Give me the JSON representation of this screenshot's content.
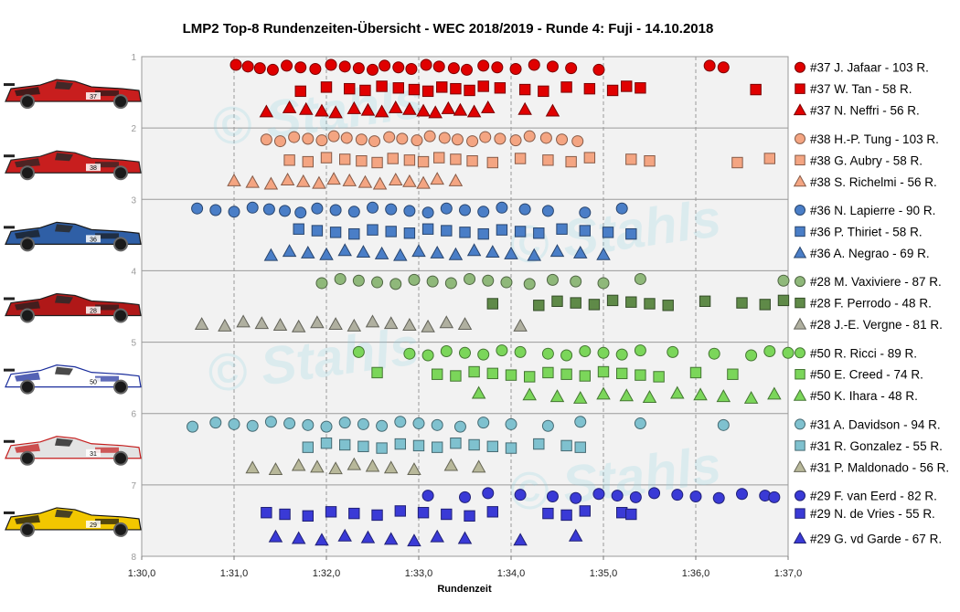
{
  "chart_data": {
    "type": "scatter",
    "title": "LMP2  Top-8  Rundenzeiten-Übersicht   - WEC 2018/2019   - Runde  4:  Fuji   - 14.10.2018",
    "xlabel": "Rundenzeit",
    "ylabel": "",
    "x_unit": "seconds (m:ss)",
    "xlim": [
      90,
      97
    ],
    "ylim": [
      1,
      8
    ],
    "y_reversed": true,
    "x_ticks": [
      "1:30,0",
      "1:31,0",
      "1:32,0",
      "1:33,0",
      "1:34,0",
      "1:35,0",
      "1:36,0",
      "1:37,0"
    ],
    "y_ticks": [
      "1",
      "2",
      "3",
      "4",
      "5",
      "6",
      "7",
      "8"
    ],
    "grid": {
      "x_dashed": true,
      "y_solid": true
    },
    "legend_position": "right",
    "cars": [
      {
        "number": "37",
        "livery": "#c81e1e",
        "accent": "#1a1a1a"
      },
      {
        "number": "38",
        "livery": "#c81e1e",
        "accent": "#262626"
      },
      {
        "number": "36",
        "livery": "#2f5fa6",
        "accent": "#1a1a1a"
      },
      {
        "number": "28",
        "livery": "#b01818",
        "accent": "#202020"
      },
      {
        "number": "50",
        "livery": "#ffffff",
        "accent": "#1b2e9c"
      },
      {
        "number": "31",
        "livery": "#e3e3e3",
        "accent": "#c41c1c"
      },
      {
        "number": "29",
        "livery": "#f2c700",
        "accent": "#111111"
      }
    ],
    "series": [
      {
        "name": "#37 J. Jafaar - 103 R.",
        "car": "#37",
        "marker": "circle",
        "color": "#e00000",
        "row": 1.15,
        "x": [
          91.02,
          91.15,
          91.28,
          91.42,
          91.57,
          91.72,
          91.88,
          92.05,
          92.2,
          92.35,
          92.5,
          92.63,
          92.78,
          92.92,
          93.08,
          93.22,
          93.38,
          93.52,
          93.7,
          93.85,
          94.05,
          94.25,
          94.45,
          94.65,
          94.95,
          96.15,
          96.3
        ]
      },
      {
        "name": "#37 W. Tan - 58 R.",
        "car": "#37",
        "marker": "square",
        "color": "#e00000",
        "row": 1.45,
        "x": [
          91.72,
          92.0,
          92.25,
          92.42,
          92.6,
          92.78,
          92.95,
          93.1,
          93.25,
          93.4,
          93.55,
          93.7,
          93.88,
          94.15,
          94.35,
          94.6,
          94.85,
          95.1,
          95.25,
          95.4,
          96.65
        ]
      },
      {
        "name": "#37 N. Neffri - 56 R.",
        "car": "#37",
        "marker": "triangle",
        "color": "#e00000",
        "row": 1.75,
        "x": [
          91.35,
          91.6,
          91.78,
          91.95,
          92.1,
          92.3,
          92.45,
          92.6,
          92.75,
          92.9,
          93.05,
          93.18,
          93.32,
          93.45,
          93.6,
          93.75,
          94.15,
          94.45
        ]
      },
      {
        "name": "#38 H.-P. Tung - 103 R.",
        "car": "#38",
        "marker": "circle",
        "color": "#f4a582",
        "row": 2.15,
        "x": [
          91.35,
          91.5,
          91.65,
          91.8,
          91.95,
          92.08,
          92.22,
          92.38,
          92.52,
          92.68,
          92.82,
          92.98,
          93.12,
          93.28,
          93.42,
          93.58,
          93.72,
          93.88,
          94.05,
          94.2,
          94.38,
          94.55,
          94.72
        ]
      },
      {
        "name": "#38 G. Aubry - 58 R.",
        "car": "#38",
        "marker": "square",
        "color": "#f4a582",
        "row": 2.45,
        "x": [
          91.6,
          91.8,
          92.0,
          92.2,
          92.38,
          92.55,
          92.72,
          92.9,
          93.05,
          93.22,
          93.4,
          93.58,
          93.8,
          94.1,
          94.4,
          94.65,
          94.85,
          95.3,
          95.5,
          96.45,
          96.8
        ]
      },
      {
        "name": "#38 S. Richelmi - 56 R.",
        "car": "#38",
        "marker": "triangle",
        "color": "#f4a582",
        "row": 2.75,
        "x": [
          91.0,
          91.2,
          91.4,
          91.58,
          91.75,
          91.92,
          92.08,
          92.25,
          92.42,
          92.58,
          92.75,
          92.9,
          93.05,
          93.2,
          93.4
        ]
      },
      {
        "name": "#36 N. Lapierre - 90 R.",
        "car": "#36",
        "marker": "circle",
        "color": "#4a7ec7",
        "row": 3.15,
        "x": [
          90.6,
          90.8,
          91.0,
          91.2,
          91.38,
          91.55,
          91.72,
          91.9,
          92.1,
          92.3,
          92.5,
          92.7,
          92.9,
          93.1,
          93.3,
          93.5,
          93.7,
          93.9,
          94.15,
          94.4,
          94.8,
          95.2
        ]
      },
      {
        "name": "#36 P. Thiriet - 58 R.",
        "car": "#36",
        "marker": "square",
        "color": "#4a7ec7",
        "row": 3.45,
        "x": [
          91.7,
          91.9,
          92.1,
          92.3,
          92.5,
          92.7,
          92.9,
          93.1,
          93.3,
          93.5,
          93.7,
          93.9,
          94.1,
          94.3,
          94.55,
          94.8,
          95.05,
          95.3
        ]
      },
      {
        "name": "#36 A. Negrao - 69 R.",
        "car": "#36",
        "marker": "triangle",
        "color": "#4a7ec7",
        "row": 3.75,
        "x": [
          91.4,
          91.6,
          91.8,
          92.0,
          92.2,
          92.4,
          92.6,
          92.8,
          93.0,
          93.2,
          93.4,
          93.6,
          93.8,
          94.0,
          94.25,
          94.5,
          94.75,
          95.0
        ]
      },
      {
        "name": "#28 M. Vaxiviere - 87 R.",
        "car": "#28",
        "marker": "circle",
        "color": "#8fb87a",
        "row": 4.15,
        "x": [
          91.95,
          92.15,
          92.35,
          92.55,
          92.75,
          92.95,
          93.15,
          93.35,
          93.55,
          93.75,
          93.95,
          94.2,
          94.45,
          94.7,
          95.0,
          95.4,
          96.95
        ]
      },
      {
        "name": "#28 F. Perrodo - 48 R.",
        "car": "#28",
        "marker": "square",
        "color": "#5f8a48",
        "row": 4.45,
        "x": [
          93.8,
          94.3,
          94.5,
          94.7,
          94.9,
          95.1,
          95.3,
          95.5,
          95.7,
          96.1,
          96.5,
          96.75,
          96.95
        ]
      },
      {
        "name": "#28 J.-E. Vergne - 81 R.",
        "car": "#28",
        "marker": "triangle",
        "color": "#b0b0a0",
        "row": 4.75,
        "x": [
          90.65,
          90.9,
          91.1,
          91.3,
          91.5,
          91.7,
          91.9,
          92.1,
          92.3,
          92.5,
          92.7,
          92.9,
          93.1,
          93.3,
          93.5,
          94.1
        ]
      },
      {
        "name": "#50 R. Ricci - 89 R.",
        "car": "#50",
        "marker": "circle",
        "color": "#7bd65a",
        "row": 5.15,
        "x": [
          92.35,
          92.9,
          93.1,
          93.3,
          93.5,
          93.7,
          93.9,
          94.1,
          94.4,
          94.6,
          94.8,
          95.0,
          95.2,
          95.4,
          95.75,
          96.2,
          96.6,
          96.8,
          97.0
        ]
      },
      {
        "name": "#50 E. Creed - 74 R.",
        "car": "#50",
        "marker": "square",
        "color": "#7bd65a",
        "row": 5.45,
        "x": [
          92.55,
          93.2,
          93.4,
          93.6,
          93.8,
          94.0,
          94.2,
          94.4,
          94.6,
          94.8,
          95.0,
          95.2,
          95.4,
          95.6,
          96.0,
          96.4
        ]
      },
      {
        "name": "#50 K. Ihara - 48 R.",
        "car": "#50",
        "marker": "triangle",
        "color": "#7bd65a",
        "row": 5.75,
        "x": [
          93.65,
          94.2,
          94.5,
          94.75,
          95.0,
          95.25,
          95.5,
          95.8,
          96.05,
          96.3,
          96.6,
          96.85
        ]
      },
      {
        "name": "#31 A. Davidson - 94 R.",
        "car": "#31",
        "marker": "circle",
        "color": "#7fc1cf",
        "row": 6.15,
        "x": [
          90.55,
          90.8,
          91.0,
          91.2,
          91.4,
          91.6,
          91.8,
          92.0,
          92.2,
          92.4,
          92.6,
          92.8,
          93.0,
          93.2,
          93.45,
          93.7,
          94.0,
          94.4,
          94.75,
          95.4,
          96.3
        ]
      },
      {
        "name": "#31 R. Gonzalez - 55 R.",
        "car": "#31",
        "marker": "square",
        "color": "#7fc1cf",
        "row": 6.45,
        "x": [
          91.8,
          92.0,
          92.2,
          92.4,
          92.6,
          92.8,
          93.0,
          93.2,
          93.4,
          93.6,
          93.8,
          94.0,
          94.3,
          94.6,
          94.75
        ]
      },
      {
        "name": "#31 P. Maldonado - 56 R.",
        "car": "#31",
        "marker": "triangle",
        "color": "#b8b89a",
        "row": 6.75,
        "x": [
          91.2,
          91.45,
          91.7,
          91.9,
          92.1,
          92.3,
          92.5,
          92.7,
          92.95,
          93.35,
          93.65
        ]
      },
      {
        "name": "#29 F. van Eerd - 82 R.",
        "car": "#29",
        "marker": "circle",
        "color": "#3a3ad6",
        "row": 7.15,
        "x": [
          93.1,
          93.5,
          93.75,
          94.1,
          94.45,
          94.7,
          94.95,
          95.15,
          95.35,
          95.55,
          95.8,
          96.0,
          96.25,
          96.5,
          96.75,
          96.85
        ]
      },
      {
        "name": "#29 N. de Vries - 55 R.",
        "car": "#29",
        "marker": "square",
        "color": "#3a3ad6",
        "row": 7.4,
        "x": [
          91.35,
          91.55,
          91.8,
          92.05,
          92.3,
          92.55,
          92.8,
          93.05,
          93.3,
          93.55,
          93.8,
          94.4,
          94.6,
          94.8,
          95.2,
          95.3
        ]
      },
      {
        "name": "#29 G. vd Garde - 67 R.",
        "car": "#29",
        "marker": "triangle",
        "color": "#3a3ad6",
        "row": 7.75,
        "x": [
          91.45,
          91.7,
          91.95,
          92.2,
          92.45,
          92.7,
          92.95,
          93.2,
          93.5,
          94.1,
          94.7
        ]
      }
    ]
  }
}
